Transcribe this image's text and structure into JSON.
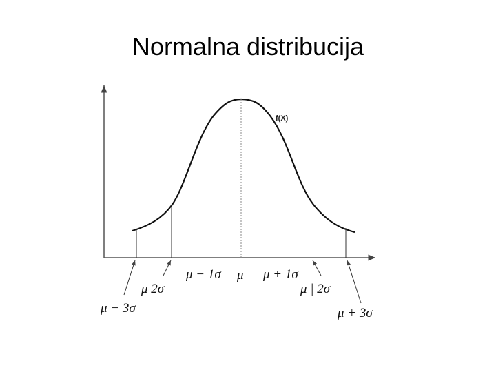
{
  "title": "Normalna distribucija",
  "curve_label": "f(X)",
  "labels": {
    "minus3": "μ − 3σ",
    "minus2": "μ 2σ",
    "minus1": "μ − 1σ",
    "mean": "μ",
    "plus1": "μ + 1σ",
    "plus2": "μ | 2σ",
    "plus3": "μ + 3σ"
  }
}
